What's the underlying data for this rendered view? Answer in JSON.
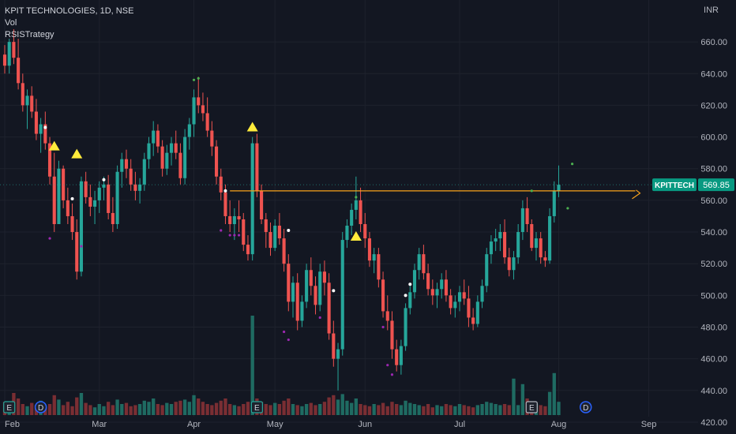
{
  "legend": {
    "symbol_line": "KPIT TECHNOLOGIES, 1D, NSE",
    "indicators": [
      "Vol",
      "RSISTrategy"
    ]
  },
  "currency": "INR",
  "price_label": {
    "symbol": "KPITTECH",
    "value": "569.85",
    "color": "#089981"
  },
  "colors": {
    "background": "#131722",
    "up": "#26a69a",
    "down": "#ef5350",
    "vol_up": "#1f6b62",
    "vol_down": "#7a2e33",
    "level_line": "#f7a21b",
    "grid": "#1e222d",
    "marker_triangle": "#ffeb3b",
    "dot_green": "#4caf50",
    "dot_purple": "#9c27b0"
  },
  "chart_data": {
    "type": "candlestick",
    "y_axis": {
      "ticks": [
        420,
        440,
        460,
        480,
        500,
        520,
        540,
        560,
        580,
        600,
        620,
        640,
        660
      ],
      "range": [
        415,
        675
      ]
    },
    "x_axis": {
      "labels": [
        {
          "text": "Feb",
          "index": 0
        },
        {
          "text": "Mar",
          "index": 21
        },
        {
          "text": "Apr",
          "index": 42
        },
        {
          "text": "May",
          "index": 60
        },
        {
          "text": "Jun",
          "index": 80
        },
        {
          "text": "Jul",
          "index": 101
        },
        {
          "text": "Aug",
          "index": 123
        },
        {
          "text": "Sep",
          "index": 143
        }
      ],
      "slots": 155
    },
    "level_line": {
      "value": 566,
      "from_index": 50,
      "to_index": 140
    },
    "candles": [
      [
        652,
        658,
        640,
        645
      ],
      [
        645,
        662,
        640,
        660
      ],
      [
        660,
        668,
        646,
        650
      ],
      [
        650,
        662,
        630,
        634
      ],
      [
        634,
        640,
        616,
        620
      ],
      [
        620,
        630,
        605,
        626
      ],
      [
        626,
        632,
        612,
        616
      ],
      [
        616,
        624,
        598,
        602
      ],
      [
        602,
        612,
        590,
        608
      ],
      [
        608,
        616,
        592,
        596
      ],
      [
        596,
        600,
        570,
        575
      ],
      [
        575,
        590,
        540,
        545
      ],
      [
        545,
        585,
        545,
        580
      ],
      [
        580,
        582,
        555,
        560
      ],
      [
        560,
        568,
        545,
        550
      ],
      [
        550,
        558,
        535,
        540
      ],
      [
        540,
        548,
        510,
        515
      ],
      [
        515,
        575,
        512,
        572
      ],
      [
        572,
        578,
        558,
        562
      ],
      [
        562,
        570,
        550,
        556
      ],
      [
        556,
        566,
        545,
        560
      ],
      [
        560,
        572,
        552,
        568
      ],
      [
        568,
        575,
        560,
        570
      ],
      [
        570,
        576,
        548,
        552
      ],
      [
        552,
        562,
        540,
        545
      ],
      [
        545,
        582,
        542,
        578
      ],
      [
        578,
        590,
        568,
        586
      ],
      [
        586,
        592,
        574,
        580
      ],
      [
        580,
        586,
        566,
        570
      ],
      [
        570,
        578,
        560,
        566
      ],
      [
        566,
        574,
        558,
        570
      ],
      [
        570,
        590,
        566,
        586
      ],
      [
        586,
        600,
        580,
        596
      ],
      [
        596,
        610,
        588,
        604
      ],
      [
        604,
        608,
        590,
        594
      ],
      [
        594,
        598,
        575,
        580
      ],
      [
        580,
        595,
        576,
        590
      ],
      [
        590,
        600,
        582,
        596
      ],
      [
        596,
        604,
        586,
        590
      ],
      [
        590,
        596,
        570,
        574
      ],
      [
        574,
        605,
        570,
        600
      ],
      [
        600,
        612,
        592,
        608
      ],
      [
        608,
        630,
        600,
        625
      ],
      [
        625,
        638,
        615,
        620
      ],
      [
        620,
        628,
        610,
        615
      ],
      [
        615,
        625,
        600,
        604
      ],
      [
        604,
        610,
        588,
        594
      ],
      [
        594,
        598,
        570,
        575
      ],
      [
        575,
        580,
        560,
        565
      ],
      [
        565,
        570,
        545,
        550
      ],
      [
        550,
        560,
        540,
        545
      ],
      [
        545,
        555,
        535,
        550
      ],
      [
        550,
        560,
        540,
        548
      ],
      [
        548,
        552,
        528,
        532
      ],
      [
        532,
        538,
        522,
        526
      ],
      [
        526,
        600,
        522,
        596
      ],
      [
        596,
        602,
        562,
        566
      ],
      [
        566,
        570,
        545,
        548
      ],
      [
        548,
        552,
        530,
        540
      ],
      [
        540,
        546,
        525,
        530
      ],
      [
        530,
        548,
        528,
        544
      ],
      [
        544,
        552,
        532,
        536
      ],
      [
        536,
        542,
        515,
        520
      ],
      [
        520,
        526,
        490,
        496
      ],
      [
        496,
        512,
        486,
        508
      ],
      [
        508,
        514,
        478,
        484
      ],
      [
        484,
        500,
        480,
        496
      ],
      [
        496,
        520,
        492,
        516
      ],
      [
        516,
        524,
        500,
        506
      ],
      [
        506,
        512,
        488,
        494
      ],
      [
        494,
        520,
        490,
        515
      ],
      [
        515,
        522,
        500,
        508
      ],
      [
        508,
        514,
        472,
        476
      ],
      [
        476,
        484,
        455,
        460
      ],
      [
        460,
        470,
        440,
        466
      ],
      [
        466,
        540,
        462,
        535
      ],
      [
        535,
        548,
        530,
        544
      ],
      [
        544,
        558,
        538,
        554
      ],
      [
        554,
        575,
        548,
        560
      ],
      [
        560,
        568,
        540,
        545
      ],
      [
        545,
        552,
        530,
        536
      ],
      [
        536,
        540,
        518,
        522
      ],
      [
        522,
        530,
        514,
        526
      ],
      [
        526,
        530,
        505,
        510
      ],
      [
        510,
        515,
        486,
        490
      ],
      [
        490,
        500,
        478,
        484
      ],
      [
        484,
        490,
        460,
        466
      ],
      [
        466,
        472,
        452,
        456
      ],
      [
        456,
        472,
        450,
        468
      ],
      [
        468,
        495,
        465,
        492
      ],
      [
        492,
        506,
        488,
        502
      ],
      [
        502,
        520,
        498,
        516
      ],
      [
        516,
        530,
        510,
        526
      ],
      [
        526,
        532,
        510,
        514
      ],
      [
        514,
        520,
        500,
        504
      ],
      [
        504,
        510,
        494,
        500
      ],
      [
        500,
        508,
        492,
        504
      ],
      [
        504,
        514,
        498,
        510
      ],
      [
        510,
        516,
        496,
        500
      ],
      [
        500,
        504,
        488,
        492
      ],
      [
        492,
        500,
        486,
        496
      ],
      [
        496,
        506,
        490,
        502
      ],
      [
        502,
        510,
        494,
        498
      ],
      [
        498,
        506,
        480,
        486
      ],
      [
        486,
        492,
        478,
        482
      ],
      [
        482,
        500,
        480,
        496
      ],
      [
        496,
        510,
        492,
        506
      ],
      [
        506,
        530,
        502,
        526
      ],
      [
        526,
        538,
        520,
        534
      ],
      [
        534,
        542,
        528,
        536
      ],
      [
        536,
        545,
        528,
        540
      ],
      [
        540,
        548,
        520,
        524
      ],
      [
        524,
        530,
        512,
        516
      ],
      [
        516,
        528,
        510,
        524
      ],
      [
        524,
        545,
        520,
        540
      ],
      [
        540,
        560,
        535,
        555
      ],
      [
        555,
        562,
        540,
        545
      ],
      [
        545,
        548,
        528,
        530
      ],
      [
        530,
        540,
        522,
        536
      ],
      [
        536,
        540,
        520,
        524
      ],
      [
        524,
        528,
        518,
        522
      ],
      [
        522,
        555,
        520,
        550
      ],
      [
        550,
        572,
        546,
        566
      ],
      [
        566,
        582,
        562,
        569.85
      ]
    ],
    "volumes": [
      1.2,
      0.9,
      2.0,
      1.5,
      1.0,
      0.8,
      1.1,
      0.9,
      1.3,
      0.7,
      1.0,
      1.8,
      1.4,
      0.9,
      1.2,
      0.8,
      1.6,
      2.0,
      1.1,
      0.9,
      0.7,
      1.0,
      0.8,
      1.2,
      0.9,
      1.4,
      1.0,
      1.1,
      0.8,
      0.9,
      1.0,
      1.3,
      1.2,
      1.5,
      1.0,
      0.9,
      1.1,
      1.0,
      1.2,
      1.3,
      1.4,
      1.2,
      1.8,
      1.5,
      1.2,
      1.0,
      0.9,
      1.1,
      1.3,
      1.5,
      1.0,
      0.9,
      0.8,
      1.0,
      1.2,
      9.0,
      1.5,
      1.2,
      1.0,
      0.9,
      1.1,
      1.0,
      1.3,
      1.5,
      1.0,
      0.9,
      0.8,
      1.0,
      1.1,
      0.9,
      1.0,
      1.2,
      1.6,
      1.8,
      1.4,
      1.9,
      1.3,
      1.1,
      1.5,
      1.0,
      0.9,
      0.8,
      1.0,
      0.9,
      1.1,
      0.8,
      1.2,
      1.0,
      0.9,
      1.3,
      1.1,
      1.0,
      0.9,
      0.8,
      1.0,
      0.7,
      0.9,
      0.8,
      1.0,
      0.9,
      0.8,
      1.0,
      0.9,
      0.8,
      0.7,
      0.9,
      1.0,
      1.2,
      1.1,
      1.0,
      0.9,
      1.0,
      0.9,
      3.3,
      0.9,
      2.8,
      1.5,
      1.1,
      1.0,
      0.9,
      0.8,
      2.1,
      3.8,
      1.2
    ],
    "markers": {
      "triangles": [
        {
          "index": 11,
          "value": 594
        },
        {
          "index": 16,
          "value": 589
        },
        {
          "index": 55,
          "value": 606
        },
        {
          "index": 78,
          "value": 537
        }
      ],
      "white_dots": [
        {
          "index": 9,
          "value": 606
        },
        {
          "index": 15,
          "value": 561
        },
        {
          "index": 22,
          "value": 573
        },
        {
          "index": 49,
          "value": 566
        },
        {
          "index": 63,
          "value": 541
        },
        {
          "index": 73,
          "value": 503
        },
        {
          "index": 89,
          "value": 500
        },
        {
          "index": 90,
          "value": 507
        }
      ],
      "green_dots": [
        {
          "index": 42,
          "value": 636
        },
        {
          "index": 43,
          "value": 637
        },
        {
          "index": 78,
          "value": 562
        },
        {
          "index": 117,
          "value": 566
        },
        {
          "index": 125,
          "value": 555
        },
        {
          "index": 126,
          "value": 583
        }
      ],
      "purple_dots": [
        {
          "index": 10,
          "value": 536
        },
        {
          "index": 17,
          "value": 531
        },
        {
          "index": 48,
          "value": 541
        },
        {
          "index": 50,
          "value": 538
        },
        {
          "index": 51,
          "value": 538
        },
        {
          "index": 52,
          "value": 538
        },
        {
          "index": 62,
          "value": 477
        },
        {
          "index": 63,
          "value": 472
        },
        {
          "index": 70,
          "value": 486
        },
        {
          "index": 84,
          "value": 480
        },
        {
          "index": 85,
          "value": 456
        },
        {
          "index": 86,
          "value": 450
        }
      ]
    },
    "event_badges": [
      {
        "index": 1,
        "text": "E",
        "type": "earnings"
      },
      {
        "index": 8,
        "text": "D",
        "type": "dividend"
      },
      {
        "index": 56,
        "text": "E",
        "type": "earnings"
      },
      {
        "index": 117,
        "text": "E",
        "type": "earnings"
      },
      {
        "index": 129,
        "text": "D",
        "type": "dividend"
      }
    ]
  }
}
